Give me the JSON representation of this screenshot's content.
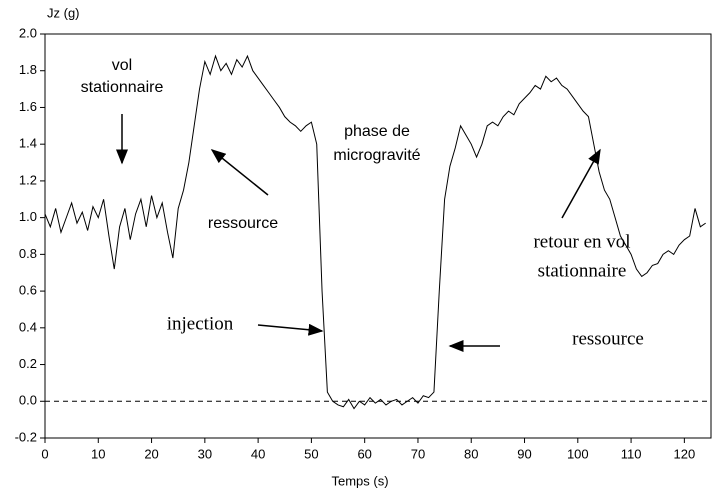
{
  "chart_data": {
    "type": "line",
    "y_label": "Jz (g)",
    "x_label": "Temps (s)",
    "xlim": [
      0,
      125
    ],
    "xticks": [
      0,
      10,
      20,
      30,
      40,
      50,
      60,
      70,
      80,
      90,
      100,
      110,
      120
    ],
    "ylim": [
      -0.2,
      2.0
    ],
    "yticks": [
      -0.2,
      {
        "value": 0,
        "label": "0.0"
      },
      0.2,
      0.4,
      0.6,
      0.8,
      {
        "value": 1,
        "label": "1.0"
      },
      1.2,
      1.4,
      1.6,
      1.8,
      {
        "value": 2,
        "label": "2.0"
      }
    ],
    "reference_line": 0,
    "annotations": [
      {
        "lines": [
          "vol",
          "stationnaire"
        ]
      },
      {
        "lines": [
          "ressource"
        ]
      },
      {
        "lines": [
          "phase de",
          "microgravité"
        ]
      },
      {
        "lines": [
          "injection"
        ]
      },
      {
        "lines": [
          "ressource"
        ]
      },
      {
        "lines": [
          "retour en vol",
          "stationnaire"
        ]
      }
    ],
    "series": [
      {
        "color": "#000000",
        "x": [
          0,
          1,
          2,
          3,
          4,
          5,
          6,
          7,
          8,
          9,
          10,
          11,
          12,
          13,
          14,
          15,
          16,
          17,
          18,
          19,
          20,
          21,
          22,
          23,
          24,
          25,
          26,
          27,
          28,
          29,
          30,
          31,
          32,
          33,
          34,
          35,
          36,
          37,
          38,
          39,
          40,
          41,
          42,
          43,
          44,
          45,
          46,
          47,
          48,
          49,
          50,
          51,
          52,
          53,
          54,
          55,
          56,
          57,
          58,
          59,
          60,
          61,
          62,
          63,
          64,
          65,
          66,
          67,
          68,
          69,
          70,
          71,
          72,
          73,
          74,
          75,
          76,
          77,
          78,
          79,
          80,
          81,
          82,
          83,
          84,
          85,
          86,
          87,
          88,
          89,
          90,
          91,
          92,
          93,
          94,
          95,
          96,
          97,
          98,
          99,
          100,
          101,
          102,
          103,
          104,
          105,
          106,
          107,
          108,
          109,
          110,
          111,
          112,
          113,
          114,
          115,
          116,
          117,
          118,
          119,
          120,
          121,
          122,
          123,
          124
        ],
        "values": [
          1.02,
          0.95,
          1.05,
          0.92,
          1.0,
          1.08,
          0.97,
          1.03,
          0.93,
          1.06,
          1.0,
          1.1,
          0.9,
          0.72,
          0.95,
          1.05,
          0.88,
          1.02,
          1.1,
          0.95,
          1.12,
          1.0,
          1.08,
          0.92,
          0.78,
          1.05,
          1.15,
          1.3,
          1.5,
          1.7,
          1.85,
          1.78,
          1.88,
          1.8,
          1.84,
          1.78,
          1.86,
          1.82,
          1.88,
          1.8,
          1.76,
          1.72,
          1.68,
          1.64,
          1.6,
          1.55,
          1.52,
          1.5,
          1.47,
          1.5,
          1.52,
          1.4,
          0.6,
          0.05,
          0.0,
          -0.02,
          -0.03,
          0.01,
          -0.04,
          0.0,
          -0.02,
          0.02,
          -0.01,
          0.01,
          -0.02,
          0.0,
          0.01,
          -0.02,
          0.0,
          0.02,
          -0.01,
          0.03,
          0.02,
          0.05,
          0.6,
          1.1,
          1.28,
          1.38,
          1.5,
          1.45,
          1.4,
          1.33,
          1.4,
          1.5,
          1.52,
          1.5,
          1.55,
          1.58,
          1.56,
          1.62,
          1.65,
          1.68,
          1.72,
          1.7,
          1.77,
          1.74,
          1.76,
          1.72,
          1.7,
          1.66,
          1.62,
          1.58,
          1.55,
          1.4,
          1.25,
          1.15,
          1.1,
          1.0,
          0.9,
          0.85,
          0.8,
          0.72,
          0.68,
          0.7,
          0.74,
          0.75,
          0.8,
          0.82,
          0.8,
          0.85,
          0.88,
          0.9,
          1.05,
          0.95,
          0.97
        ]
      }
    ]
  }
}
